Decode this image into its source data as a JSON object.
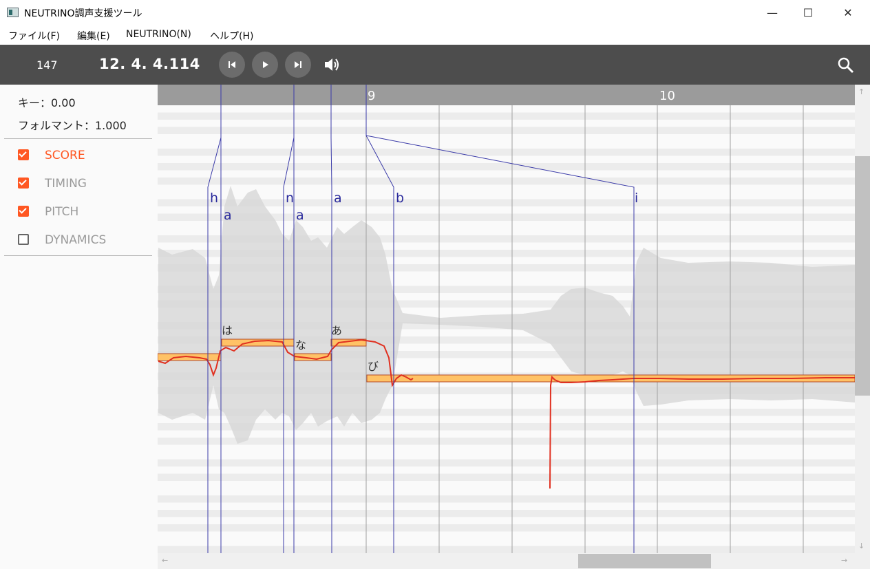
{
  "window": {
    "title": "NEUTRINO調声支援ツール",
    "minimize_glyph": "—",
    "maximize_glyph": "☐",
    "close_glyph": "✕"
  },
  "menu": [
    "ファイル(F)",
    "編集(E)",
    "NEUTRINO(N)",
    "ヘルプ(H)"
  ],
  "toolbar": {
    "tempo": "147",
    "position": "12.  4.  4.114",
    "buttons": [
      "skip-previous-icon",
      "play-icon",
      "skip-next-icon",
      "volume-icon",
      "search-icon"
    ]
  },
  "sidebar": {
    "key": "キー：0.00",
    "formant": "フォルマント：1.000",
    "layers": [
      {
        "label": "SCORE",
        "checked": true
      },
      {
        "label": "TIMING",
        "checked": true
      },
      {
        "label": "PITCH",
        "checked": true
      },
      {
        "label": "DYNAMICS",
        "checked": false
      }
    ]
  },
  "timeline": {
    "measures": [
      "9",
      "10"
    ]
  },
  "phonemes": [
    "h",
    "a",
    "n",
    "a",
    "a",
    "b",
    "i"
  ],
  "lyrics": [
    "は",
    "な",
    "あ",
    "び"
  ],
  "colors": {
    "accent": "#ff5722",
    "note_fill": "#ffc266",
    "pitch_curve": "#e03020",
    "timing_line": "#3a3aa8",
    "toolbar": "#4d4d4d"
  }
}
